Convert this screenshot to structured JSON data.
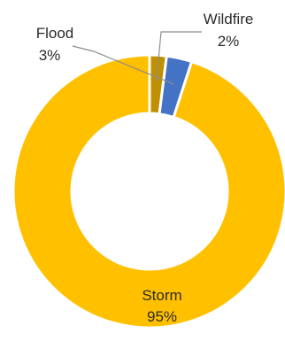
{
  "chart_data": {
    "type": "pie",
    "style": "donut",
    "title": "",
    "start": "top",
    "direction": "clockwise",
    "slices": [
      {
        "name": "Storm",
        "value": 95,
        "label": "95%",
        "color": "#FFC000"
      },
      {
        "name": "Flood",
        "value": 3,
        "label": "3%",
        "color": "#4472C4"
      },
      {
        "name": "Wildfire",
        "value": 2,
        "label": "2%",
        "color": "#BF9000"
      }
    ],
    "order": [
      "Wildfire",
      "Flood",
      "Storm"
    ],
    "slice_border_color": "#ffffff",
    "leader_line_color": "#8c8c8c",
    "legend": "none"
  }
}
